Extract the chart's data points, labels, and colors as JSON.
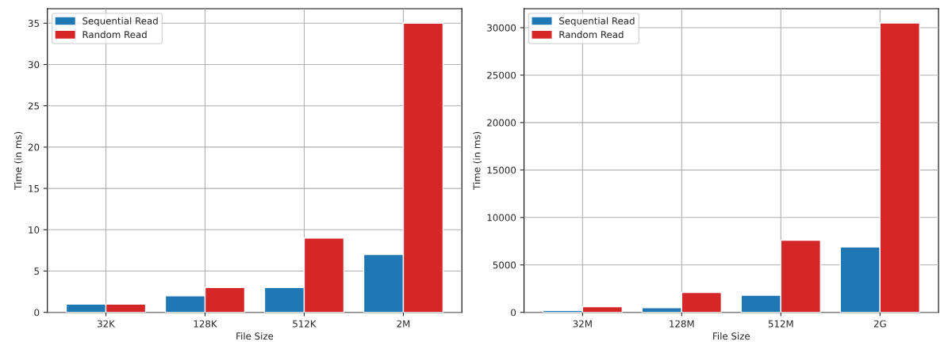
{
  "chart_data": [
    {
      "type": "bar",
      "categories": [
        "32K",
        "128K",
        "512K",
        "2M"
      ],
      "xlabel": "File Size",
      "ylabel": "Time (in ms)",
      "ylim": [
        0,
        36.75
      ],
      "yticks": [
        0,
        5,
        10,
        15,
        20,
        25,
        30,
        35
      ],
      "grid": true,
      "legend": "top left",
      "series": [
        {
          "name": "Sequential Read",
          "color": "#1f77b4",
          "values": [
            1,
            2,
            3,
            7
          ]
        },
        {
          "name": "Random Read",
          "color": "#d62728",
          "values": [
            1,
            3,
            9,
            35
          ]
        }
      ]
    },
    {
      "type": "bar",
      "categories": [
        "32M",
        "128M",
        "512M",
        "2G"
      ],
      "xlabel": "File Size",
      "ylabel": "Time (in ms)",
      "ylim": [
        0,
        32000
      ],
      "yticks": [
        0,
        5000,
        10000,
        15000,
        20000,
        25000,
        30000
      ],
      "grid": true,
      "legend": "top left",
      "series": [
        {
          "name": "Sequential Read",
          "color": "#1f77b4",
          "values": [
            200,
            500,
            1800,
            6900
          ]
        },
        {
          "name": "Random Read",
          "color": "#d62728",
          "values": [
            600,
            2100,
            7600,
            30500
          ]
        }
      ]
    }
  ]
}
